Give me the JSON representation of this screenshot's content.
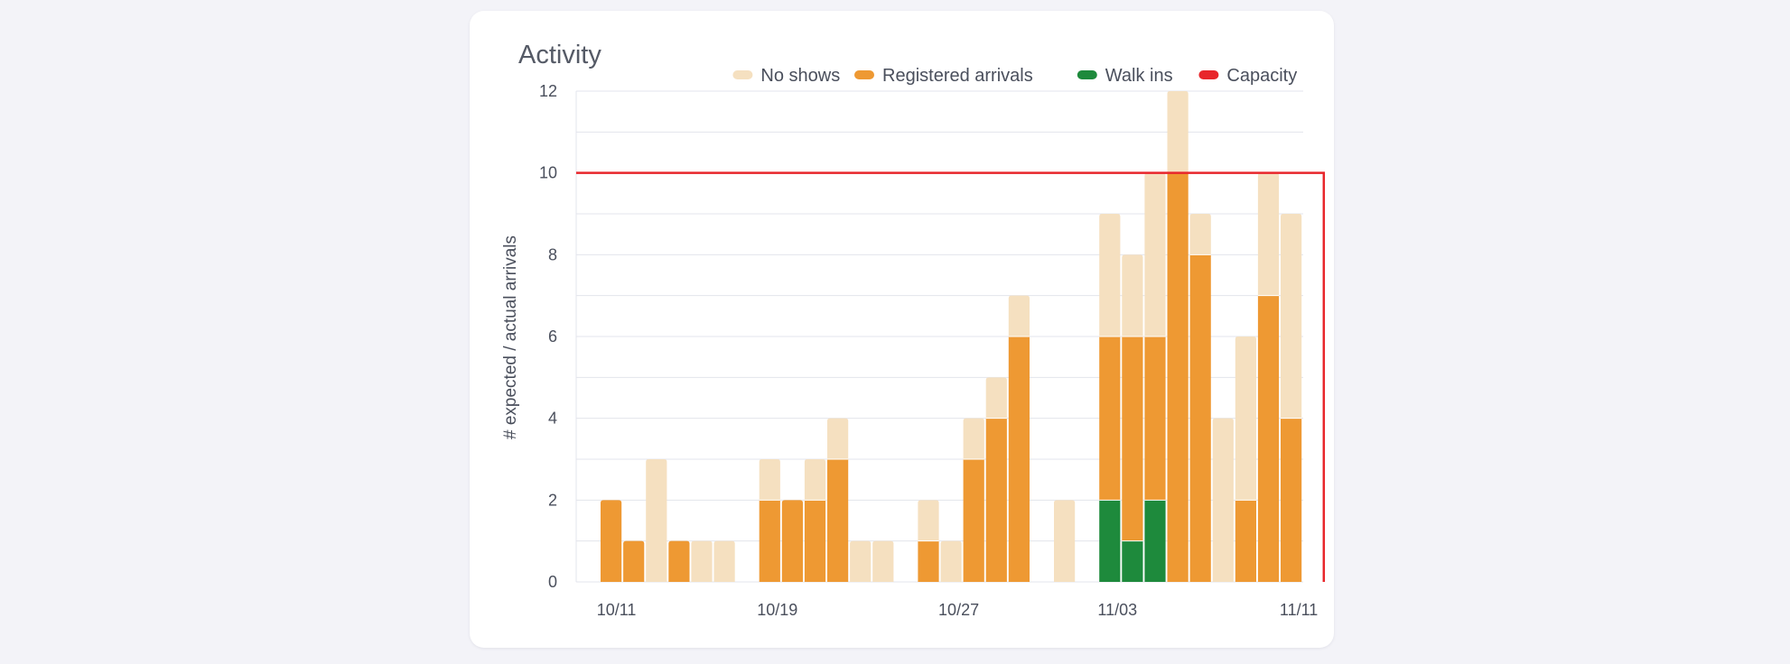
{
  "chart_data": {
    "type": "bar",
    "stacked": true,
    "title": "Activity",
    "ylabel": "# expected / actual arrivals",
    "xlabel": "",
    "ylim": [
      0,
      12
    ],
    "yticks": [
      0,
      2,
      4,
      6,
      8,
      10,
      12
    ],
    "grid": true,
    "x_range": [
      "10/10",
      "11/11"
    ],
    "x_tick_labels": [
      {
        "label": "10/11",
        "at_day": 0.7
      },
      {
        "label": "10/19",
        "at_day": 7.8
      },
      {
        "label": "10/27",
        "at_day": 15.8
      },
      {
        "label": "11/03",
        "at_day": 22.8
      },
      {
        "label": "11/11",
        "at_day": 30.8
      }
    ],
    "day_count": 32,
    "categories": [
      "10/11",
      "10/12",
      "10/13",
      "10/14",
      "10/15",
      "10/16",
      "10/17",
      "10/18",
      "10/19",
      "10/20",
      "10/21",
      "10/22",
      "10/23",
      "10/24",
      "10/25",
      "10/26",
      "10/27",
      "10/28",
      "10/29",
      "10/30",
      "10/31",
      "11/01",
      "11/02",
      "11/03",
      "11/04",
      "11/05",
      "11/06",
      "11/07",
      "11/08",
      "11/09",
      "11/10",
      "11/11"
    ],
    "series": [
      {
        "name": "Walk ins",
        "color": "#1e8a3c",
        "values": [
          0,
          0,
          0,
          0,
          0,
          0,
          0,
          0,
          0,
          0,
          0,
          0,
          0,
          0,
          0,
          0,
          0,
          0,
          0,
          0,
          0,
          0,
          2,
          1,
          2,
          0,
          0,
          0,
          0,
          0,
          0,
          0
        ]
      },
      {
        "name": "Registered arrivals",
        "color": "#ee9933",
        "values": [
          2,
          1,
          0,
          1,
          0,
          0,
          0,
          2,
          2,
          2,
          3,
          0,
          0,
          0,
          1,
          0,
          3,
          4,
          6,
          0,
          0,
          0,
          4,
          5,
          4,
          10,
          8,
          0,
          2,
          7,
          4,
          0
        ]
      },
      {
        "name": "No shows",
        "color": "#f5e0c0",
        "values": [
          0,
          0,
          3,
          0,
          1,
          1,
          0,
          1,
          0,
          1,
          1,
          1,
          1,
          0,
          1,
          1,
          1,
          1,
          1,
          0,
          2,
          0,
          3,
          2,
          4,
          2,
          1,
          4,
          4,
          3,
          5,
          0
        ]
      }
    ],
    "capacity": {
      "name": "Capacity",
      "color": "#e8262b",
      "value": 10
    },
    "legend": {
      "position": "top-right",
      "order": [
        "No shows",
        "Registered arrivals",
        "Walk ins",
        "Capacity"
      ]
    }
  }
}
